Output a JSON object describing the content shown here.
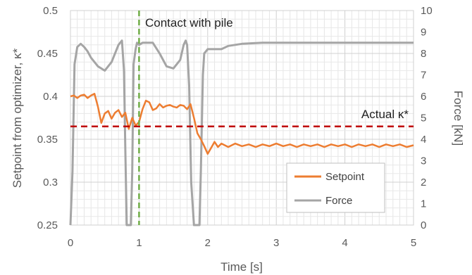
{
  "chart_data": {
    "type": "line",
    "title": "",
    "xlabel": "Time [s]",
    "ylabel": "Setpoint from optimizer, κ*",
    "y2label": "Force [kN]",
    "xlim": [
      0,
      5
    ],
    "ylim": [
      0.25,
      0.5
    ],
    "y2lim": [
      0,
      10
    ],
    "x_ticks": [
      "0",
      "1",
      "2",
      "3",
      "4",
      "5"
    ],
    "y_ticks": [
      "0.25",
      "0.3",
      "0.35",
      "0.4",
      "0.45",
      "0.5"
    ],
    "y2_ticks": [
      "0",
      "1",
      "2",
      "3",
      "4",
      "5",
      "6",
      "7",
      "8",
      "9",
      "10"
    ],
    "grid": true,
    "legend_position": "bottom-right",
    "series": [
      {
        "name": "Setpoint",
        "axis": "left",
        "color": "#ED7D31",
        "x": [
          0.0,
          0.05,
          0.1,
          0.15,
          0.2,
          0.25,
          0.3,
          0.35,
          0.4,
          0.45,
          0.5,
          0.55,
          0.6,
          0.65,
          0.7,
          0.75,
          0.8,
          0.85,
          0.9,
          0.95,
          1.0,
          1.05,
          1.1,
          1.15,
          1.2,
          1.25,
          1.3,
          1.35,
          1.4,
          1.45,
          1.5,
          1.55,
          1.6,
          1.65,
          1.7,
          1.75,
          1.8,
          1.85,
          1.9,
          1.95,
          2.0,
          2.05,
          2.1,
          2.15,
          2.2,
          2.3,
          2.4,
          2.5,
          2.6,
          2.7,
          2.8,
          2.9,
          3.0,
          3.1,
          3.2,
          3.3,
          3.4,
          3.5,
          3.6,
          3.7,
          3.8,
          3.9,
          4.0,
          4.1,
          4.2,
          4.3,
          4.4,
          4.5,
          4.6,
          4.7,
          4.8,
          4.9,
          5.0
        ],
        "y": [
          0.4,
          0.401,
          0.398,
          0.401,
          0.402,
          0.398,
          0.401,
          0.403,
          0.388,
          0.369,
          0.38,
          0.383,
          0.374,
          0.381,
          0.384,
          0.376,
          0.381,
          0.362,
          0.375,
          0.366,
          0.37,
          0.385,
          0.395,
          0.393,
          0.384,
          0.386,
          0.391,
          0.387,
          0.389,
          0.39,
          0.388,
          0.387,
          0.39,
          0.389,
          0.385,
          0.391,
          0.375,
          0.357,
          0.35,
          0.342,
          0.333,
          0.34,
          0.347,
          0.341,
          0.345,
          0.341,
          0.345,
          0.342,
          0.344,
          0.341,
          0.344,
          0.342,
          0.345,
          0.342,
          0.344,
          0.341,
          0.344,
          0.342,
          0.344,
          0.341,
          0.344,
          0.342,
          0.344,
          0.341,
          0.344,
          0.342,
          0.344,
          0.341,
          0.344,
          0.342,
          0.344,
          0.341,
          0.343
        ]
      },
      {
        "name": "Force",
        "axis": "right",
        "color": "#A5A5A5",
        "x": [
          0.0,
          0.03,
          0.06,
          0.1,
          0.15,
          0.2,
          0.25,
          0.3,
          0.4,
          0.5,
          0.6,
          0.7,
          0.75,
          0.78,
          0.8,
          0.82,
          0.85,
          0.88,
          0.9,
          0.92,
          0.95,
          0.97,
          1.0,
          1.05,
          1.1,
          1.2,
          1.3,
          1.4,
          1.5,
          1.6,
          1.65,
          1.68,
          1.7,
          1.73,
          1.76,
          1.8,
          1.85,
          1.88,
          1.9,
          1.93,
          1.95,
          2.0,
          2.1,
          2.2,
          2.3,
          2.5,
          2.8,
          3.0,
          3.5,
          4.0,
          4.5,
          5.0
        ],
        "y": [
          0.0,
          2.5,
          7.5,
          8.3,
          8.45,
          8.3,
          8.1,
          7.8,
          7.4,
          7.2,
          7.6,
          8.4,
          8.6,
          7.2,
          3.5,
          0.0,
          0.0,
          0.0,
          2.5,
          7.5,
          8.2,
          8.5,
          8.4,
          8.5,
          8.5,
          8.5,
          8.0,
          7.4,
          7.3,
          7.7,
          8.4,
          8.6,
          8.4,
          6.5,
          2.0,
          0.0,
          0.0,
          0.0,
          2.5,
          7.0,
          8.0,
          8.2,
          8.2,
          8.2,
          8.35,
          8.45,
          8.5,
          8.5,
          8.5,
          8.5,
          8.5,
          8.5
        ]
      },
      {
        "name": "Actual κ*",
        "axis": "left",
        "color": "#C00000",
        "style": "dashed",
        "x": [
          0,
          5
        ],
        "y": [
          0.365,
          0.365
        ]
      }
    ],
    "annotations": [
      {
        "text": "Contact with pile",
        "x": 1.0,
        "color": "#70AD47",
        "style": "dashed-vertical"
      },
      {
        "text": "Actual κ*"
      }
    ]
  }
}
